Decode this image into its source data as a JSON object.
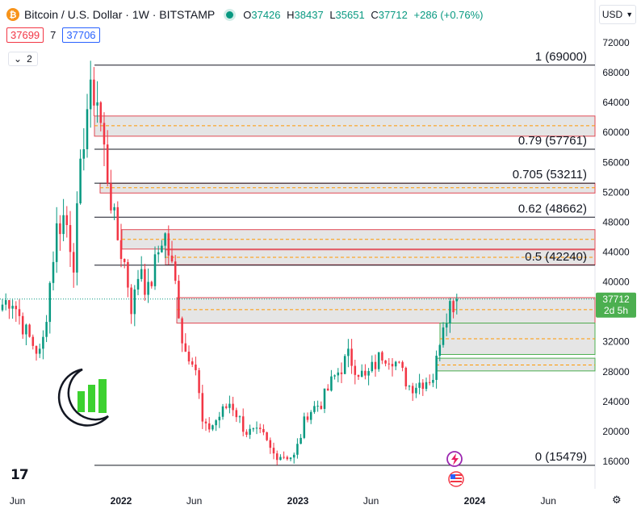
{
  "header": {
    "symbol_title": "Bitcoin / U.S. Dollar · 1W · BITSTAMP",
    "symbol_icon": "bitcoin-icon",
    "ohlc": [
      {
        "k": "O",
        "v": "37426"
      },
      {
        "k": "H",
        "v": "38437"
      },
      {
        "k": "L",
        "v": "35651"
      },
      {
        "k": "C",
        "v": "37712"
      }
    ],
    "change": "+286 (+0.76%)",
    "bid": "37699",
    "spread": "7",
    "ask": "37706",
    "indicators_count": "2",
    "currency": "USD"
  },
  "chart_data": {
    "type": "candlestick",
    "y_ticks": [
      72000,
      68000,
      64000,
      60000,
      56000,
      52000,
      48000,
      44000,
      40000,
      36000,
      32000,
      28000,
      24000,
      20000,
      16000
    ],
    "ylim": [
      14000,
      74500
    ],
    "x_ticks": [
      "Jun",
      "2022",
      "Jun",
      "2023",
      "Jun",
      "2024",
      "Jun"
    ],
    "last_price": "37712",
    "countdown": "2d 5h",
    "fib_levels": [
      {
        "ratio": "1",
        "price": 69000,
        "label": "1 (69000)"
      },
      {
        "ratio": "0.79",
        "price": 57761,
        "label": "0.79 (57761)"
      },
      {
        "ratio": "0.705",
        "price": 53211,
        "label": "0.705 (53211)"
      },
      {
        "ratio": "0.62",
        "price": 48662,
        "label": "0.62 (48662)"
      },
      {
        "ratio": "0.5",
        "price": 42240,
        "label": "0.5 (42240)"
      },
      {
        "ratio": "0",
        "price": 15479,
        "label": "0 (15479)"
      }
    ],
    "zones": [
      {
        "type": "supply",
        "top": 62200,
        "mid": 60900,
        "bottom": 59500
      },
      {
        "type": "supply",
        "top": 53200,
        "mid": 52600,
        "bottom": 51900
      },
      {
        "type": "supply",
        "top": 47000,
        "mid": 45700,
        "bottom": 44400
      },
      {
        "type": "supply",
        "top": 44300,
        "mid": 43300,
        "bottom": 42300
      },
      {
        "type": "supply",
        "top": 37900,
        "mid": 36300,
        "bottom": 34500
      },
      {
        "type": "demand",
        "top": 34500,
        "mid": 32400,
        "bottom": 30300
      },
      {
        "type": "demand",
        "top": 29800,
        "mid": 28900,
        "bottom": 28100
      }
    ],
    "anchors": [
      {
        "date": "2021-05-01",
        "price": 37000
      },
      {
        "date": "2021-05-20",
        "price": 38000
      },
      {
        "date": "2021-06-20",
        "price": 33000
      },
      {
        "date": "2021-07-20",
        "price": 30000
      },
      {
        "date": "2021-08-20",
        "price": 47000
      },
      {
        "date": "2021-09-07",
        "price": 49000
      },
      {
        "date": "2021-09-25",
        "price": 43000
      },
      {
        "date": "2021-10-20",
        "price": 63000
      },
      {
        "date": "2021-11-10",
        "price": 66000
      },
      {
        "date": "2021-11-28",
        "price": 57000
      },
      {
        "date": "2021-12-20",
        "price": 47000
      },
      {
        "date": "2022-01-10",
        "price": 42000
      },
      {
        "date": "2022-01-24",
        "price": 36000
      },
      {
        "date": "2022-02-10",
        "price": 43000
      },
      {
        "date": "2022-02-24",
        "price": 38000
      },
      {
        "date": "2022-03-30",
        "price": 47000
      },
      {
        "date": "2022-04-25",
        "price": 39000
      },
      {
        "date": "2022-05-10",
        "price": 31000
      },
      {
        "date": "2022-06-01",
        "price": 30000
      },
      {
        "date": "2022-06-20",
        "price": 20000
      },
      {
        "date": "2022-07-10",
        "price": 21000
      },
      {
        "date": "2022-08-15",
        "price": 24000
      },
      {
        "date": "2022-09-15",
        "price": 20000
      },
      {
        "date": "2022-10-20",
        "price": 19500
      },
      {
        "date": "2022-11-10",
        "price": 17000
      },
      {
        "date": "2022-12-25",
        "price": 16600
      },
      {
        "date": "2023-01-20",
        "price": 22500
      },
      {
        "date": "2023-02-20",
        "price": 24000
      },
      {
        "date": "2023-03-15",
        "price": 27000
      },
      {
        "date": "2023-04-15",
        "price": 30000
      },
      {
        "date": "2023-05-20",
        "price": 27000
      },
      {
        "date": "2023-06-25",
        "price": 30500
      },
      {
        "date": "2023-07-15",
        "price": 30000
      },
      {
        "date": "2023-08-20",
        "price": 26000
      },
      {
        "date": "2023-09-25",
        "price": 27000
      },
      {
        "date": "2023-10-10",
        "price": 27500
      },
      {
        "date": "2023-10-25",
        "price": 34500
      },
      {
        "date": "2023-11-10",
        "price": 37000
      },
      {
        "date": "2023-11-20",
        "price": 37426
      }
    ],
    "last_candle": {
      "open": 37426,
      "high": 38437,
      "low": 35651,
      "close": 37712
    },
    "bull_color": "#089981",
    "bear_color": "#f23645",
    "fib_line_color": "#131722",
    "zone_border_color": "#e14954",
    "demand_border_color": "#4caf50",
    "zone_fill": "#e0e0e0",
    "zone_mid_color": "#ff9800",
    "price_badge_color": "#4caf50"
  }
}
